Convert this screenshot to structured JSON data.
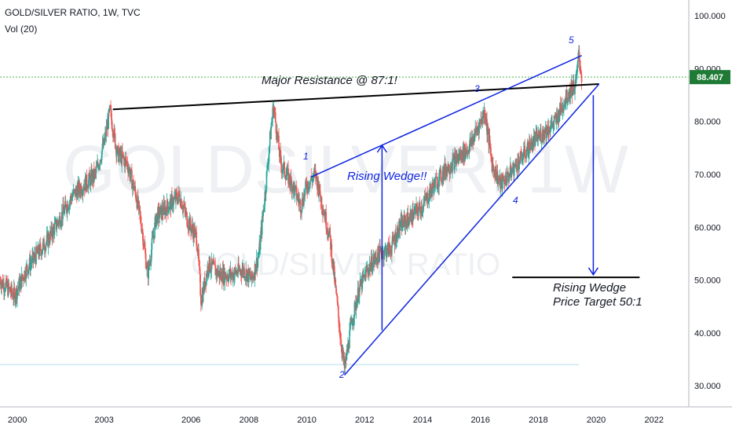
{
  "header": {
    "symbol_line": "GOLD/SILVER RATIO, 1W, TVC",
    "indicator": "Vol (20)"
  },
  "watermark": {
    "large": "GOLDSILVER, 1W",
    "small": "GOLD/SILVER RATIO"
  },
  "colors": {
    "candle_up": "#26a69a",
    "candle_down": "#ef5350",
    "wedge": "#0d24e0",
    "resistance": "#000000",
    "price_badge": "#1e7a35",
    "current_price_line": "#4caf50"
  },
  "chart_data": {
    "type": "candlestick",
    "title": "GOLD/SILVER RATIO, 1W, TVC",
    "y_axis": {
      "ticks": [
        "100.000",
        "90.000",
        "80.000",
        "70.000",
        "60.000",
        "50.000",
        "40.000",
        "30.000"
      ],
      "range": [
        26,
        103
      ]
    },
    "x_axis": {
      "ticks": [
        "2000",
        "2003",
        "2006",
        "2008",
        "2010",
        "2012",
        "2014",
        "2016",
        "2018",
        "2020",
        "2022"
      ],
      "range": [
        1999.4,
        2023.2
      ]
    },
    "current_price": "88.407",
    "price_path": [
      [
        1999.4,
        50
      ],
      [
        1999.9,
        47
      ],
      [
        2000.3,
        52
      ],
      [
        2000.7,
        55
      ],
      [
        2001.1,
        58
      ],
      [
        2001.5,
        62
      ],
      [
        2001.9,
        66
      ],
      [
        2002.3,
        68
      ],
      [
        2002.7,
        70
      ],
      [
        2003.0,
        76
      ],
      [
        2003.2,
        82
      ],
      [
        2003.45,
        74
      ],
      [
        2003.8,
        72
      ],
      [
        2004.1,
        66
      ],
      [
        2004.3,
        60
      ],
      [
        2004.5,
        51
      ],
      [
        2004.8,
        62
      ],
      [
        2005.2,
        64
      ],
      [
        2005.6,
        66
      ],
      [
        2005.9,
        61
      ],
      [
        2006.2,
        58
      ],
      [
        2006.35,
        46
      ],
      [
        2006.6,
        53
      ],
      [
        2007.0,
        51
      ],
      [
        2007.4,
        51
      ],
      [
        2007.8,
        52
      ],
      [
        2008.1,
        50
      ],
      [
        2008.35,
        55
      ],
      [
        2008.55,
        66
      ],
      [
        2008.75,
        78
      ],
      [
        2008.85,
        83
      ],
      [
        2009.1,
        72
      ],
      [
        2009.5,
        68
      ],
      [
        2009.8,
        64
      ],
      [
        2010.0,
        68
      ],
      [
        2010.3,
        70
      ],
      [
        2010.55,
        64
      ],
      [
        2010.8,
        58
      ],
      [
        2011.0,
        48
      ],
      [
        2011.15,
        40
      ],
      [
        2011.3,
        33
      ],
      [
        2011.55,
        42
      ],
      [
        2011.8,
        48
      ],
      [
        2012.1,
        52
      ],
      [
        2012.5,
        55
      ],
      [
        2012.9,
        56
      ],
      [
        2013.2,
        60
      ],
      [
        2013.6,
        62
      ],
      [
        2014.0,
        64
      ],
      [
        2014.4,
        68
      ],
      [
        2014.8,
        71
      ],
      [
        2015.2,
        73
      ],
      [
        2015.6,
        75
      ],
      [
        2016.0,
        80
      ],
      [
        2016.15,
        82
      ],
      [
        2016.4,
        72
      ],
      [
        2016.7,
        68
      ],
      [
        2017.0,
        70
      ],
      [
        2017.4,
        73
      ],
      [
        2017.8,
        76
      ],
      [
        2018.2,
        78
      ],
      [
        2018.6,
        80
      ],
      [
        2018.9,
        84
      ],
      [
        2019.1,
        86
      ],
      [
        2019.3,
        87
      ],
      [
        2019.4,
        93
      ],
      [
        2019.5,
        88
      ]
    ],
    "annotations": [
      {
        "id": "major-resistance",
        "text": "Major Resistance @ 87:1!"
      },
      {
        "id": "rising-wedge",
        "text": "Rising Wedge!!"
      },
      {
        "id": "target-line1",
        "text": "Rising Wedge"
      },
      {
        "id": "target-line2",
        "text": "Price Target 50:1"
      },
      {
        "id": "wave-1",
        "text": "1"
      },
      {
        "id": "wave-2",
        "text": "2"
      },
      {
        "id": "wave-3",
        "text": "3"
      },
      {
        "id": "wave-4",
        "text": "4"
      },
      {
        "id": "wave-5",
        "text": "5"
      }
    ],
    "trendlines": {
      "resistance": [
        [
          2003.3,
          82.3
        ],
        [
          2020.1,
          87.1
        ]
      ],
      "wedge_upper": [
        [
          2010.15,
          69.5
        ],
        [
          2019.5,
          92.5
        ]
      ],
      "wedge_lower": [
        [
          2011.3,
          32
        ],
        [
          2020.1,
          87.1
        ]
      ],
      "horizontal_support": 34,
      "target_level": 50.5,
      "target_segment": [
        2017.1,
        2021.5
      ],
      "projection_x": 2012.6,
      "projection_from": 40.5,
      "projection_to": 75.5,
      "target_x": 2019.9,
      "target_from": 85,
      "target_to": 51
    }
  }
}
